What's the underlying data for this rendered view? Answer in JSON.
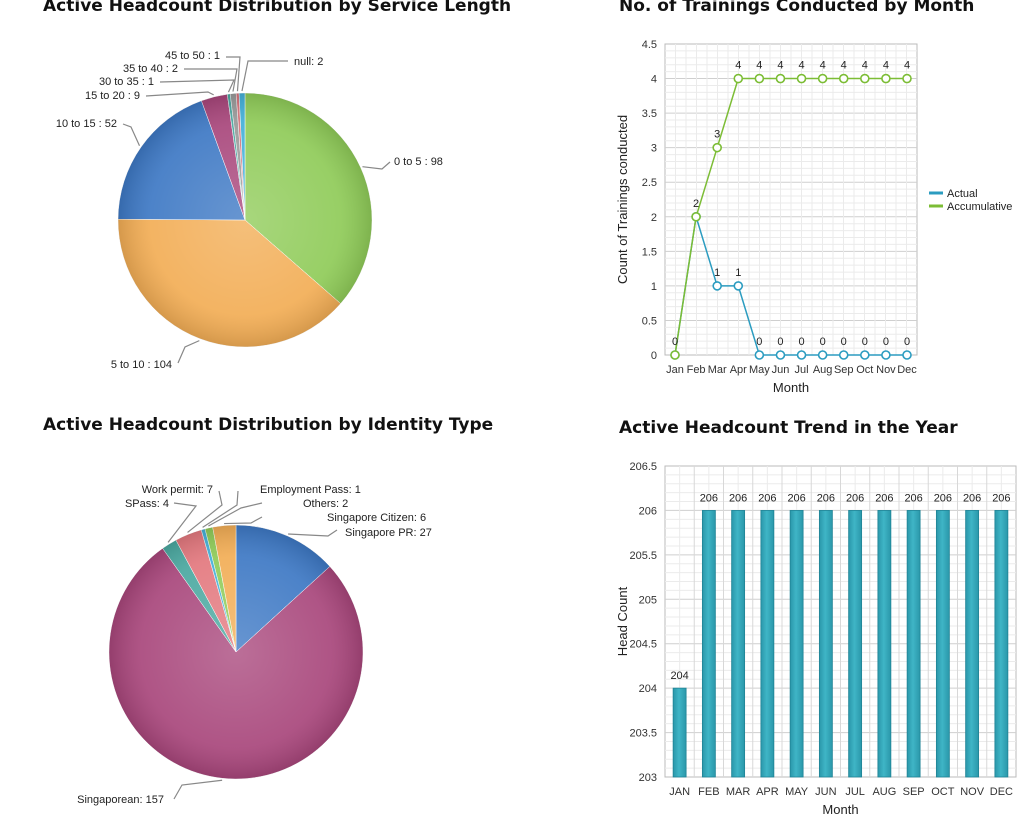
{
  "titles": {
    "service_length": "Active Headcount Distribution by Service Length",
    "trainings": "No. of Trainings Conducted by Month",
    "identity": "Active Headcount Distribution by Identity Type",
    "headcount_trend": "Active Headcount Trend in the Year"
  },
  "chart_data": [
    {
      "id": "service_length",
      "type": "pie",
      "title": "Active Headcount Distribution by Service Length",
      "slices": [
        {
          "label": "0  to 5  : 98",
          "name": "0 to 5",
          "value": 98,
          "color": "#8fcb58"
        },
        {
          "label": "5  to 10 : 104",
          "name": "5 to 10",
          "value": 104,
          "color": "#f2ad55"
        },
        {
          "label": "10 to 15 : 52",
          "name": "10 to 15",
          "value": 52,
          "color": "#3d78c4"
        },
        {
          "label": "15 to 20 : 9",
          "name": "15 to 20",
          "value": 9,
          "color": "#a8467b"
        },
        {
          "label": "30 to 35 : 1",
          "name": "30 to 35",
          "value": 1,
          "color": "#4aa8a0"
        },
        {
          "label": "35 to 40 : 2",
          "name": "35 to 40",
          "value": 2,
          "color": "#9a9a9a"
        },
        {
          "label": "45 to 50 : 1",
          "name": "45 to 50",
          "value": 1,
          "color": "#d7737b"
        },
        {
          "label": "null: 2",
          "name": "null",
          "value": 2,
          "color": "#43b0d8"
        }
      ]
    },
    {
      "id": "trainings",
      "type": "line",
      "title": "No. of Trainings Conducted by Month",
      "xlabel": "Month",
      "ylabel": "Count of Trainings conducted",
      "categories": [
        "Jan",
        "Feb",
        "Mar",
        "Apr",
        "May",
        "Jun",
        "Jul",
        "Aug",
        "Sep",
        "Oct",
        "Nov",
        "Dec"
      ],
      "ylim": [
        0,
        4.5
      ],
      "yticks": [
        "0",
        "0.5",
        "1",
        "1.5",
        "2",
        "2.5",
        "3",
        "3.5",
        "4",
        "4.5"
      ],
      "grid": true,
      "legend": "right",
      "series": [
        {
          "name": "Actual",
          "color": "#2b9cc0",
          "values": [
            0,
            2,
            1,
            1,
            0,
            0,
            0,
            0,
            0,
            0,
            0,
            0
          ]
        },
        {
          "name": "Accumulative",
          "color": "#7cbd35",
          "values": [
            0,
            2,
            3,
            4,
            4,
            4,
            4,
            4,
            4,
            4,
            4,
            4
          ]
        }
      ],
      "data_labels": [
        {
          "x": "Jan",
          "text": "0",
          "series": "Accumulative"
        },
        {
          "x": "Feb",
          "text": "2",
          "series": "Accumulative"
        },
        {
          "x": "Mar",
          "text": "3",
          "series": "Accumulative"
        },
        {
          "x": "Apr",
          "text": "4",
          "series": "Accumulative"
        },
        {
          "x": "May",
          "text": "4",
          "series": "Accumulative"
        },
        {
          "x": "Jun",
          "text": "4",
          "series": "Accumulative"
        },
        {
          "x": "Jul",
          "text": "4",
          "series": "Accumulative"
        },
        {
          "x": "Aug",
          "text": "4",
          "series": "Accumulative"
        },
        {
          "x": "Sep",
          "text": "4",
          "series": "Accumulative"
        },
        {
          "x": "Oct",
          "text": "4",
          "series": "Accumulative"
        },
        {
          "x": "Nov",
          "text": "4",
          "series": "Accumulative"
        },
        {
          "x": "Dec",
          "text": "4",
          "series": "Accumulative"
        },
        {
          "x": "Mar",
          "text": "1",
          "series": "Actual"
        },
        {
          "x": "Apr",
          "text": "1",
          "series": "Actual"
        },
        {
          "x": "May",
          "text": "0",
          "series": "Actual"
        },
        {
          "x": "Jun",
          "text": "0",
          "series": "Actual"
        },
        {
          "x": "Jul",
          "text": "0",
          "series": "Actual"
        },
        {
          "x": "Aug",
          "text": "0",
          "series": "Actual"
        },
        {
          "x": "Sep",
          "text": "0",
          "series": "Actual"
        },
        {
          "x": "Oct",
          "text": "0",
          "series": "Actual"
        },
        {
          "x": "Nov",
          "text": "0",
          "series": "Actual"
        },
        {
          "x": "Dec",
          "text": "0",
          "series": "Actual"
        }
      ]
    },
    {
      "id": "identity",
      "type": "pie",
      "title": "Active Headcount Distribution by Identity Type",
      "slices": [
        {
          "label": "Singapore PR: 27",
          "name": "Singapore PR",
          "value": 27,
          "color": "#3d78c4"
        },
        {
          "label": "Singaporean: 157",
          "name": "Singaporean",
          "value": 157,
          "color": "#a8467b"
        },
        {
          "label": "SPass: 4",
          "name": "SPass",
          "value": 4,
          "color": "#4aa8a0"
        },
        {
          "label": "Work permit: 7",
          "name": "Work permit",
          "value": 7,
          "color": "#e3787e"
        },
        {
          "label": "Employment Pass: 1",
          "name": "Employment Pass",
          "value": 1,
          "color": "#43b0d8"
        },
        {
          "label": "Others: 2",
          "name": "Others",
          "value": 2,
          "color": "#8fcb58"
        },
        {
          "label": "Singapore Citizen: 6",
          "name": "Singapore Citizen",
          "value": 6,
          "color": "#f2ad55"
        }
      ]
    },
    {
      "id": "headcount_trend",
      "type": "bar",
      "title": "Active Headcount Trend in the Year",
      "xlabel": "Month",
      "ylabel": "Head Count",
      "categories": [
        "JAN",
        "FEB",
        "MAR",
        "APR",
        "MAY",
        "JUN",
        "JUL",
        "AUG",
        "SEP",
        "OCT",
        "NOV",
        "DEC"
      ],
      "values": [
        204,
        206,
        206,
        206,
        206,
        206,
        206,
        206,
        206,
        206,
        206,
        206
      ],
      "ylim": [
        203,
        206.5
      ],
      "yticks": [
        "203",
        "203.5",
        "204",
        "204.5",
        "205",
        "205.5",
        "206",
        "206.5"
      ],
      "grid": true,
      "color": "#3fb5c6"
    }
  ]
}
